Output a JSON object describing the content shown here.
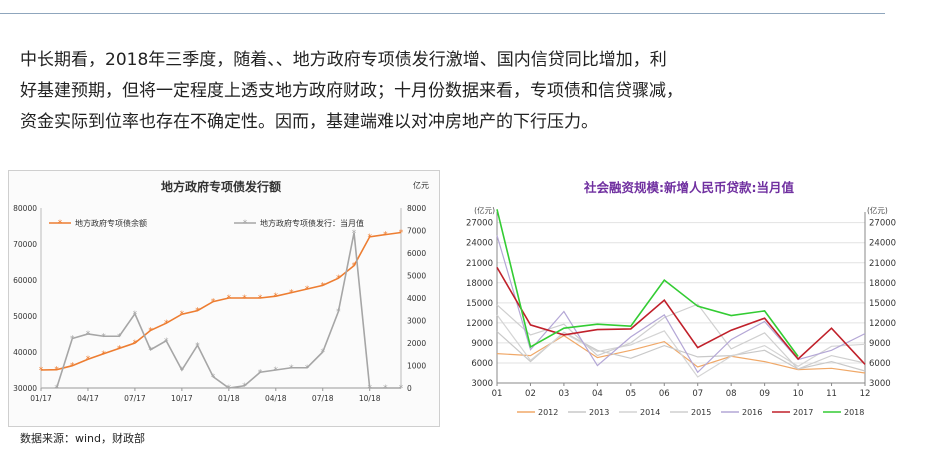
{
  "paragraph": {
    "lines": [
      "中长期看，2018年三季度，随着、、地方政府专项债发行激增、国内信贷同比增加，利",
      "好基建预期，但将一定程度上透支地方政府财政；十月份数据来看，专项债和信贷骤减，",
      "资金实际到位率也存在不确定性。因而，基建端难以对冲房地产的下行压力。"
    ]
  },
  "source_note": "数据来源：wind，财政部",
  "chart_data": [
    {
      "type": "line",
      "title": "地方政府专项债发行额",
      "y_right_unit": "亿元",
      "x_tick_labels": [
        "01/17",
        "04/17",
        "07/17",
        "10/17",
        "01/18",
        "04/18",
        "07/18",
        "10/18"
      ],
      "x_tick_positions": [
        0,
        3,
        6,
        9,
        12,
        15,
        18,
        21
      ],
      "ylim_left": [
        30000,
        80000
      ],
      "yticks_left": [
        "30000",
        "40000",
        "50000",
        "60000",
        "70000",
        "80000"
      ],
      "ylim_right": [
        0,
        8000
      ],
      "yticks_right": [
        "0",
        "1000",
        "2000",
        "3000",
        "4000",
        "5000",
        "6000",
        "7000",
        "8000"
      ],
      "series": [
        {
          "name": "地方政府专项债余额",
          "axis": "left",
          "color": "#ed7d31",
          "x": [
            0,
            1,
            2,
            3,
            4,
            5,
            6,
            7,
            8,
            9,
            10,
            11,
            12,
            13,
            14,
            15,
            16,
            17,
            18,
            19,
            20,
            21,
            22,
            23
          ],
          "values": [
            35000,
            35100,
            36200,
            38000,
            39500,
            41000,
            42500,
            46000,
            48000,
            50500,
            51500,
            54000,
            55000,
            55000,
            55000,
            55500,
            56500,
            57500,
            58500,
            60500,
            64000,
            72000,
            72600,
            73200
          ]
        },
        {
          "name": "地方政府专项债发行：当月值",
          "axis": "right",
          "color": "#a6a6a6",
          "x": [
            1,
            2,
            3,
            4,
            5,
            6,
            7,
            8,
            9,
            10,
            11,
            12,
            13,
            14,
            15,
            16,
            17,
            18,
            19,
            20,
            21,
            22,
            23
          ],
          "values": [
            0,
            2200,
            2400,
            2300,
            2300,
            3300,
            1700,
            2100,
            800,
            1900,
            500,
            0,
            100,
            700,
            800,
            900,
            900,
            1600,
            3400,
            6900,
            0,
            0,
            0
          ]
        }
      ]
    },
    {
      "type": "line",
      "title": "社会融资规模:新增人民币贷款:当月值",
      "y_left_unit": "(亿元)",
      "y_right_unit": "(亿元)",
      "categories": [
        "01",
        "02",
        "03",
        "04",
        "05",
        "06",
        "07",
        "08",
        "09",
        "10",
        "11",
        "12"
      ],
      "ylim": [
        3000,
        28000
      ],
      "yticks": [
        "3000",
        "6000",
        "9000",
        "12000",
        "15000",
        "18000",
        "21000",
        "24000",
        "27000"
      ],
      "series": [
        {
          "name": "2012",
          "color": "#f0a868",
          "values": [
            7400,
            7100,
            10100,
            6800,
            7900,
            9200,
            5400,
            7000,
            6200,
            5000,
            5200,
            4500
          ]
        },
        {
          "name": "2013",
          "color": "#c9c9c9",
          "values": [
            10700,
            6200,
            10600,
            7900,
            6700,
            8600,
            6900,
            7100,
            7900,
            5100,
            6200,
            4800
          ]
        },
        {
          "name": "2014",
          "color": "#d4d4d4",
          "values": [
            13200,
            6400,
            10500,
            7700,
            8700,
            10800,
            3900,
            7000,
            8600,
            5500,
            8500,
            8800
          ]
        },
        {
          "name": "2015",
          "color": "#cfcfcf",
          "values": [
            14700,
            10200,
            11800,
            7100,
            9000,
            12800,
            14800,
            8100,
            10500,
            5100,
            7100,
            6000
          ]
        },
        {
          "name": "2016",
          "color": "#b4a7d6",
          "values": [
            25100,
            8000,
            13700,
            5600,
            9900,
            13200,
            4600,
            9500,
            12200,
            6500,
            7900,
            10400
          ]
        },
        {
          "name": "2017",
          "color": "#c0202a",
          "values": [
            20300,
            11700,
            10200,
            11000,
            11100,
            15400,
            8300,
            10900,
            12700,
            6600,
            11200,
            5800
          ]
        },
        {
          "name": "2018",
          "color": "#33cc33",
          "values": [
            29000,
            8400,
            11200,
            11800,
            11500,
            18400,
            14500,
            13100,
            13800,
            6970,
            null,
            null
          ]
        }
      ]
    }
  ],
  "colors": {
    "left_panel_bg": "#fbfbfb",
    "right_title": "#7030a0",
    "orange": "#ed7d31",
    "grey": "#a6a6a6"
  }
}
